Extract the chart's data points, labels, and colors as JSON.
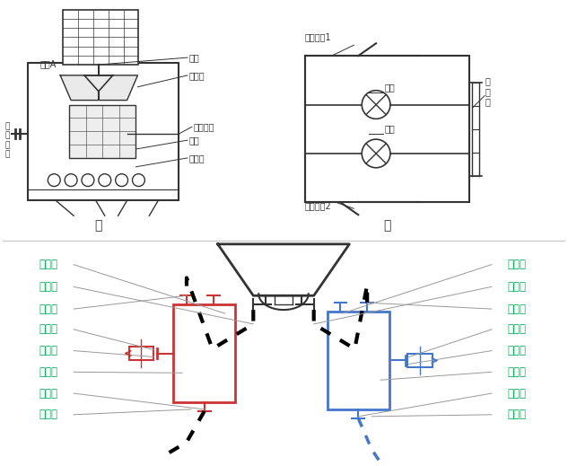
{
  "bg_color": "#ffffff",
  "label_color": "#00aa55",
  "diagram_color": "#333333",
  "red_color": "#cc3333",
  "blue_color": "#4477cc",
  "bottom_left_labels": [
    "排气室",
    "排气管",
    "进水管",
    "热水阀",
    "热水管",
    "热水胆",
    "排水管",
    "排水阀"
  ],
  "bottom_right_labels": [
    "聪明座",
    "贮水罐",
    "进水管",
    "冷水管",
    "冷水阀",
    "冷水胆",
    "排水管",
    "排水阀"
  ]
}
